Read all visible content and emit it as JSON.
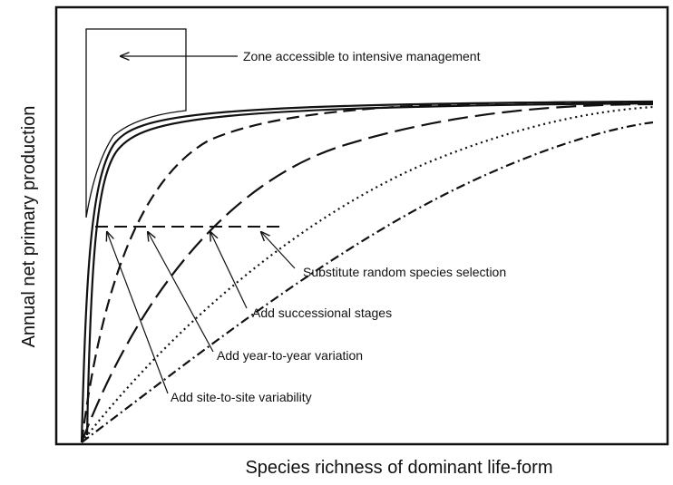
{
  "axes": {
    "y_label": "Annual net primary production",
    "x_label": "Species richness of dominant life-form"
  },
  "annotations": [
    "Zone accessible to intensive management",
    "Substitute random species selection",
    "Add successional stages",
    "Add year-to-year variation",
    "Add site-to-site variability"
  ]
}
